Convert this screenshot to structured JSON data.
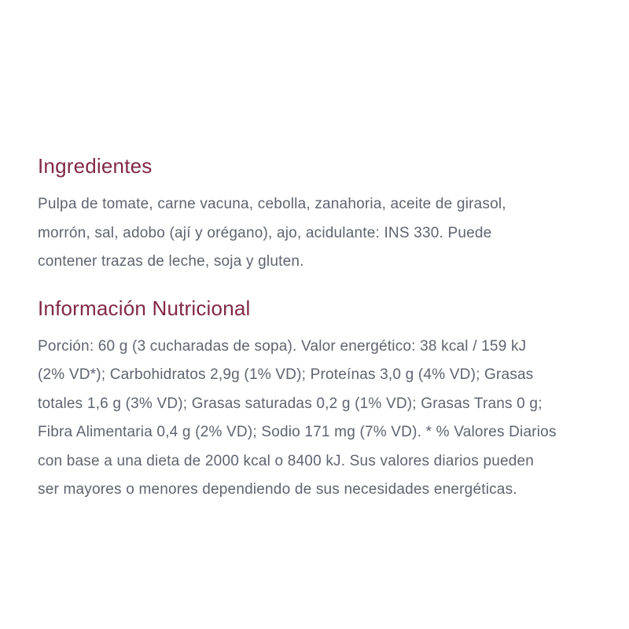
{
  "page": {
    "background_color": "#ffffff",
    "heading_color": "#822846",
    "body_text_color": "#5e6470"
  },
  "sections": [
    {
      "title": "Ingredientes",
      "body": "Pulpa de tomate, carne vacuna, cebolla, zanahoria, aceite de girasol,\nmorrón, sal, adobo (ají y orégano), ajo, acidulante: INS 330. Puede\ncontener trazas de leche, soja y gluten."
    },
    {
      "title": "Información Nutricional",
      "body": "Porción: 60 g (3 cucharadas de sopa). Valor energético: 38 kcal / 159 kJ\n(2% VD*); Carbohidratos 2,9g (1% VD); Proteínas 3,0 g (4% VD); Grasas\ntotales 1,6 g (3% VD); Grasas saturadas 0,2 g (1% VD); Grasas Trans 0 g;\nFibra Alimentaria 0,4 g (2% VD); Sodio 171 mg (7% VD). * % Valores Diarios\ncon base a una dieta de 2000 kcal o 8400 kJ. Sus valores diarios pueden\nser mayores o menores dependiendo de sus necesidades energéticas."
    }
  ]
}
